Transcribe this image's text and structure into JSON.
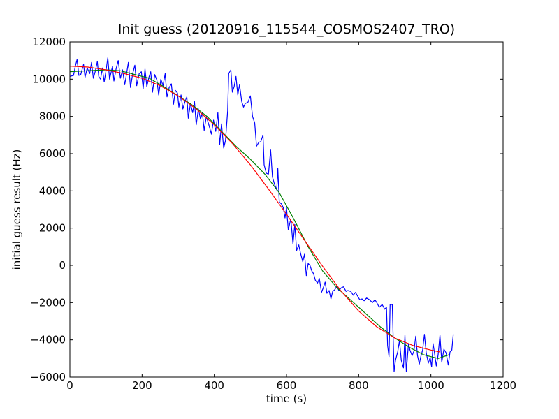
{
  "chart_data": {
    "type": "line",
    "title": "Init guess (20120916_115544_COSMOS2407_TRO)",
    "xlabel": "time (s)",
    "ylabel": "initial guess result (Hz)",
    "xlim": [
      0,
      1200
    ],
    "ylim": [
      -6000,
      12000
    ],
    "xticks": [
      0,
      200,
      400,
      600,
      800,
      1000,
      1200
    ],
    "yticks": [
      -6000,
      -4000,
      -2000,
      0,
      2000,
      4000,
      6000,
      8000,
      10000,
      12000
    ],
    "grid": false,
    "legend": "none",
    "series": [
      {
        "color": "#0000ff",
        "points": [
          [
            0,
            10150
          ],
          [
            10,
            10200
          ],
          [
            15,
            10700
          ],
          [
            20,
            11050
          ],
          [
            25,
            10200
          ],
          [
            30,
            10250
          ],
          [
            38,
            10800
          ],
          [
            42,
            10100
          ],
          [
            48,
            10600
          ],
          [
            55,
            10300
          ],
          [
            60,
            10900
          ],
          [
            65,
            10050
          ],
          [
            70,
            10400
          ],
          [
            76,
            10950
          ],
          [
            80,
            10150
          ],
          [
            85,
            10000
          ],
          [
            90,
            10600
          ],
          [
            95,
            9850
          ],
          [
            100,
            10450
          ],
          [
            105,
            11150
          ],
          [
            110,
            10000
          ],
          [
            118,
            10700
          ],
          [
            122,
            9900
          ],
          [
            128,
            10550
          ],
          [
            134,
            11000
          ],
          [
            140,
            10050
          ],
          [
            146,
            10500
          ],
          [
            152,
            9700
          ],
          [
            158,
            10400
          ],
          [
            162,
            10900
          ],
          [
            168,
            9550
          ],
          [
            174,
            10300
          ],
          [
            180,
            10750
          ],
          [
            185,
            9650
          ],
          [
            192,
            10300
          ],
          [
            198,
            10400
          ],
          [
            203,
            9500
          ],
          [
            208,
            10550
          ],
          [
            213,
            9600
          ],
          [
            219,
            10100
          ],
          [
            224,
            10400
          ],
          [
            229,
            9300
          ],
          [
            235,
            10250
          ],
          [
            241,
            9950
          ],
          [
            246,
            9150
          ],
          [
            252,
            10000
          ],
          [
            258,
            9650
          ],
          [
            264,
            10300
          ],
          [
            269,
            9050
          ],
          [
            275,
            9550
          ],
          [
            281,
            9750
          ],
          [
            287,
            8650
          ],
          [
            292,
            9400
          ],
          [
            298,
            9250
          ],
          [
            302,
            8500
          ],
          [
            308,
            9150
          ],
          [
            313,
            8400
          ],
          [
            319,
            8800
          ],
          [
            324,
            9050
          ],
          [
            328,
            7900
          ],
          [
            334,
            8700
          ],
          [
            340,
            8200
          ],
          [
            345,
            8800
          ],
          [
            350,
            7550
          ],
          [
            356,
            8400
          ],
          [
            362,
            7850
          ],
          [
            367,
            8200
          ],
          [
            372,
            7250
          ],
          [
            378,
            8000
          ],
          [
            385,
            7550
          ],
          [
            392,
            7050
          ],
          [
            398,
            7800
          ],
          [
            404,
            7200
          ],
          [
            410,
            8200
          ],
          [
            415,
            6500
          ],
          [
            420,
            7600
          ],
          [
            426,
            6300
          ],
          [
            431,
            6700
          ],
          [
            437,
            8300
          ],
          [
            440,
            10300
          ],
          [
            446,
            10500
          ],
          [
            450,
            9300
          ],
          [
            455,
            9600
          ],
          [
            460,
            10150
          ],
          [
            465,
            9150
          ],
          [
            470,
            9700
          ],
          [
            476,
            8800
          ],
          [
            481,
            8500
          ],
          [
            486,
            8700
          ],
          [
            493,
            8750
          ],
          [
            500,
            9100
          ],
          [
            506,
            8000
          ],
          [
            512,
            7650
          ],
          [
            517,
            6400
          ],
          [
            523,
            6600
          ],
          [
            529,
            6650
          ],
          [
            535,
            7000
          ],
          [
            538,
            5400
          ],
          [
            544,
            4950
          ],
          [
            550,
            4900
          ],
          [
            556,
            6200
          ],
          [
            561,
            4750
          ],
          [
            567,
            4350
          ],
          [
            573,
            4050
          ],
          [
            576,
            5200
          ],
          [
            580,
            3400
          ],
          [
            586,
            3300
          ],
          [
            591,
            3100
          ],
          [
            596,
            2550
          ],
          [
            600,
            3100
          ],
          [
            605,
            1900
          ],
          [
            612,
            2500
          ],
          [
            618,
            1150
          ],
          [
            623,
            2200
          ],
          [
            628,
            800
          ],
          [
            634,
            1100
          ],
          [
            639,
            650
          ],
          [
            645,
            200
          ],
          [
            650,
            600
          ],
          [
            655,
            -550
          ],
          [
            660,
            100
          ],
          [
            665,
            0
          ],
          [
            670,
            -300
          ],
          [
            675,
            -450
          ],
          [
            680,
            -800
          ],
          [
            686,
            -950
          ],
          [
            691,
            -700
          ],
          [
            697,
            -1450
          ],
          [
            702,
            -1200
          ],
          [
            707,
            -900
          ],
          [
            712,
            -1500
          ],
          [
            718,
            -1350
          ],
          [
            723,
            -1800
          ],
          [
            728,
            -1400
          ],
          [
            734,
            -1300
          ],
          [
            740,
            -1100
          ],
          [
            745,
            -1350
          ],
          [
            752,
            -1200
          ],
          [
            758,
            -1150
          ],
          [
            765,
            -1400
          ],
          [
            770,
            -1350
          ],
          [
            778,
            -1400
          ],
          [
            785,
            -1600
          ],
          [
            791,
            -1450
          ],
          [
            797,
            -1650
          ],
          [
            803,
            -1850
          ],
          [
            809,
            -1800
          ],
          [
            815,
            -1900
          ],
          [
            822,
            -1750
          ],
          [
            830,
            -1850
          ],
          [
            838,
            -2000
          ],
          [
            845,
            -1850
          ],
          [
            850,
            -2000
          ],
          [
            857,
            -2250
          ],
          [
            865,
            -2100
          ],
          [
            872,
            -2350
          ],
          [
            877,
            -2250
          ],
          [
            880,
            -4300
          ],
          [
            884,
            -4900
          ],
          [
            887,
            -2100
          ],
          [
            893,
            -2100
          ],
          [
            898,
            -5700
          ],
          [
            902,
            -5100
          ],
          [
            908,
            -4650
          ],
          [
            913,
            -4050
          ],
          [
            918,
            -5100
          ],
          [
            924,
            -5500
          ],
          [
            928,
            -3750
          ],
          [
            932,
            -5700
          ],
          [
            938,
            -4200
          ],
          [
            942,
            -4550
          ],
          [
            948,
            -4850
          ],
          [
            953,
            -4600
          ],
          [
            958,
            -3800
          ],
          [
            963,
            -4850
          ],
          [
            968,
            -5300
          ],
          [
            972,
            -4900
          ],
          [
            977,
            -4550
          ],
          [
            982,
            -3700
          ],
          [
            987,
            -4700
          ],
          [
            993,
            -5250
          ],
          [
            998,
            -4950
          ],
          [
            1002,
            -5450
          ],
          [
            1006,
            -4200
          ],
          [
            1010,
            -4700
          ],
          [
            1015,
            -5400
          ],
          [
            1020,
            -4800
          ],
          [
            1025,
            -3750
          ],
          [
            1030,
            -5200
          ],
          [
            1036,
            -4500
          ],
          [
            1042,
            -4700
          ],
          [
            1048,
            -5350
          ],
          [
            1053,
            -4650
          ],
          [
            1058,
            -4550
          ],
          [
            1062,
            -3700
          ]
        ]
      },
      {
        "color": "#008000",
        "points": [
          [
            0,
            10400
          ],
          [
            50,
            10450
          ],
          [
            100,
            10500
          ],
          [
            140,
            10450
          ],
          [
            180,
            10250
          ],
          [
            220,
            10050
          ],
          [
            260,
            9600
          ],
          [
            300,
            9100
          ],
          [
            340,
            8600
          ],
          [
            380,
            8000
          ],
          [
            420,
            7200
          ],
          [
            460,
            6400
          ],
          [
            500,
            5700
          ],
          [
            540,
            4900
          ],
          [
            580,
            3900
          ],
          [
            620,
            2500
          ],
          [
            660,
            1000
          ],
          [
            700,
            -300
          ],
          [
            740,
            -1200
          ],
          [
            780,
            -1900
          ],
          [
            820,
            -2600
          ],
          [
            860,
            -3300
          ],
          [
            900,
            -3900
          ],
          [
            940,
            -4400
          ],
          [
            980,
            -4800
          ],
          [
            1020,
            -5000
          ],
          [
            1050,
            -4800
          ]
        ]
      },
      {
        "color": "#ff0000",
        "points": [
          [
            0,
            10700
          ],
          [
            50,
            10650
          ],
          [
            100,
            10500
          ],
          [
            150,
            10300
          ],
          [
            200,
            10050
          ],
          [
            250,
            9650
          ],
          [
            300,
            9100
          ],
          [
            350,
            8400
          ],
          [
            400,
            7550
          ],
          [
            450,
            6550
          ],
          [
            500,
            5400
          ],
          [
            550,
            4100
          ],
          [
            600,
            2750
          ],
          [
            650,
            1350
          ],
          [
            700,
            -50
          ],
          [
            750,
            -1350
          ],
          [
            800,
            -2450
          ],
          [
            850,
            -3300
          ],
          [
            900,
            -3900
          ],
          [
            950,
            -4300
          ],
          [
            1000,
            -4550
          ],
          [
            1025,
            -4650
          ]
        ]
      }
    ]
  }
}
